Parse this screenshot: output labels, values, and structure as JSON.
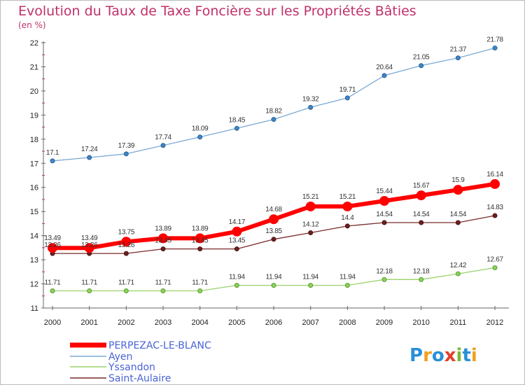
{
  "chart_data": {
    "type": "line",
    "title": "Evolution du Taux de Taxe Foncière sur les Propriétés Bâties",
    "ylabel": "(en %)",
    "xlabel": "",
    "ylim": [
      11,
      22
    ],
    "yticks": [
      "11",
      "12",
      "13",
      "14",
      "15",
      "16",
      "17",
      "18",
      "19",
      "20",
      "21",
      "22"
    ],
    "x": [
      "2000",
      "2001",
      "2002",
      "2003",
      "2004",
      "2005",
      "2006",
      "2007",
      "2008",
      "2009",
      "2010",
      "2011",
      "2012"
    ],
    "grid": false,
    "legend_position": "bottom-left",
    "series": [
      {
        "name": "PERPEZAC-LE-BLANC",
        "color": "#ff0000",
        "values": [
          13.49,
          13.49,
          13.75,
          13.89,
          13.89,
          14.17,
          14.68,
          15.21,
          15.21,
          15.44,
          15.67,
          15.9,
          16.14
        ],
        "labels": [
          "13.49",
          "13.49",
          "13.75",
          "13.89",
          "13.89",
          "14.17",
          "14.68",
          "15.21",
          "15.21",
          "15.44",
          "15.67",
          "15.9",
          "16.14"
        ]
      },
      {
        "name": "Ayen",
        "color": "#7aaad6",
        "values": [
          17.1,
          17.24,
          17.39,
          17.74,
          18.09,
          18.45,
          18.82,
          19.32,
          19.71,
          20.64,
          21.05,
          21.37,
          21.78
        ],
        "labels": [
          "17.1",
          "17.24",
          "17.39",
          "17.74",
          "18.09",
          "18.45",
          "18.82",
          "19.32",
          "19.71",
          "20.64",
          "21.05",
          "21.37",
          "21.78"
        ]
      },
      {
        "name": "Yssandon",
        "color": "#9ad36a",
        "values": [
          11.71,
          11.71,
          11.71,
          11.71,
          11.71,
          11.94,
          11.94,
          11.94,
          11.94,
          12.18,
          12.18,
          12.42,
          12.67
        ],
        "labels": [
          "11.71",
          "11.71",
          "11.71",
          "11.71",
          "11.71",
          "11.94",
          "11.94",
          "11.94",
          "11.94",
          "12.18",
          "12.18",
          "12.42",
          "12.67"
        ]
      },
      {
        "name": "Saint-Aulaire",
        "color": "#7a2a2a",
        "values": [
          13.26,
          13.26,
          13.26,
          13.45,
          13.45,
          13.45,
          13.85,
          14.12,
          14.4,
          14.54,
          14.54,
          14.54,
          14.83
        ],
        "labels": [
          "13.26",
          "13.26",
          "13.26",
          "13.45",
          "13.45",
          "13.45",
          "13.85",
          "14.12",
          "14.4",
          "14.54",
          "14.54",
          "14.54",
          "14.83"
        ]
      }
    ]
  },
  "logo": {
    "text": "Proxiti"
  }
}
